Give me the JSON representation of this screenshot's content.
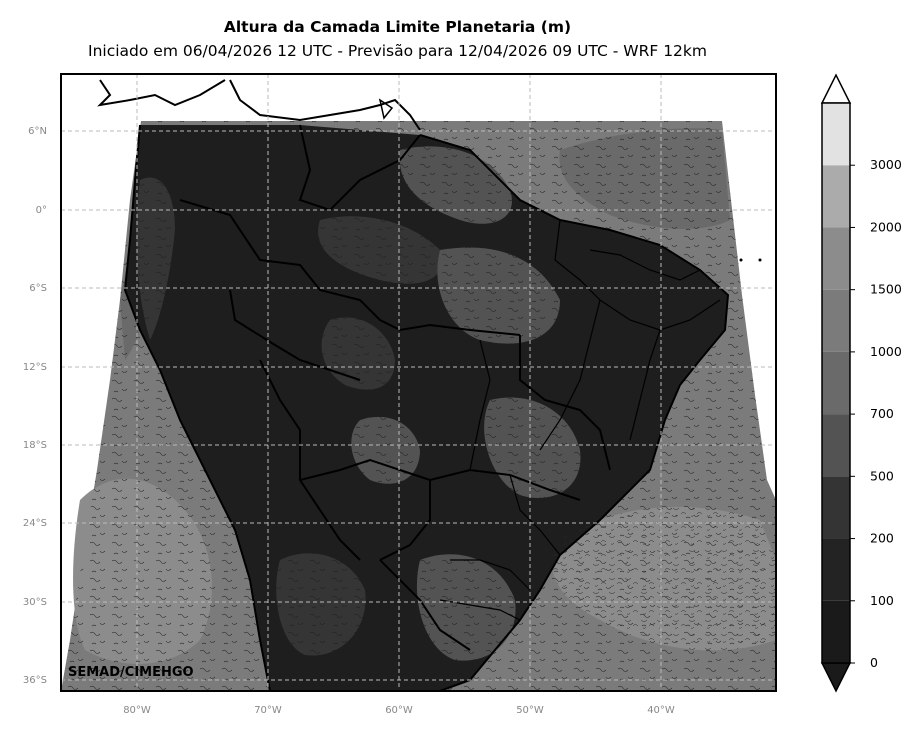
{
  "title": "Altura da Camada Limite Planetaria (m)",
  "subtitle": "Iniciado em 06/04/2026 12 UTC - Previsão para 12/04/2026 09 UTC - WRF 12km",
  "credit": "SEMAD/CIMEHGO",
  "lat_labels": [
    "6°N",
    "0°",
    "6°S",
    "12°S",
    "18°S",
    "24°S",
    "30°S",
    "36°S"
  ],
  "lon_labels": [
    "80°W",
    "70°W",
    "60°W",
    "50°W",
    "40°W"
  ],
  "colorbar": {
    "ticks": [
      "0",
      "100",
      "200",
      "500",
      "700",
      "1000",
      "1500",
      "2000",
      "3000"
    ],
    "colors": [
      "#1a1a1a",
      "#232323",
      "#343434",
      "#535353",
      "#6a6a6a",
      "#7b7b7b",
      "#8c8c8c",
      "#ababab",
      "#e2e2e2"
    ],
    "extend": "both"
  }
}
